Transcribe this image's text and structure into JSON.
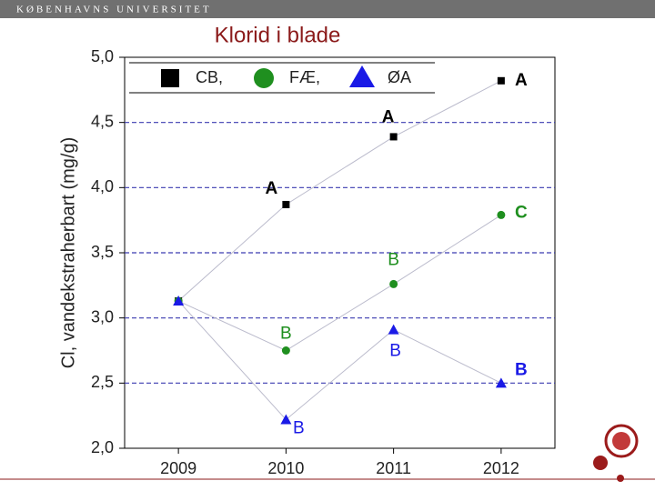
{
  "header": {
    "institution": "KØBENHAVNS UNIVERSITET"
  },
  "chart_data": {
    "type": "line",
    "title": "Klorid i blade",
    "y_label": "Cl, vandekstraherbart (mg/g)",
    "x": [
      2009,
      2010,
      2011,
      2012
    ],
    "xlim": [
      2008.5,
      2012.5
    ],
    "xticks": [
      2009,
      2010,
      2011,
      2012
    ],
    "ylim": [
      2.0,
      5.0
    ],
    "yticks": [
      {
        "value": 2.0,
        "label": "2,0"
      },
      {
        "value": 2.5,
        "label": "2,5"
      },
      {
        "value": 3.0,
        "label": "3,0"
      },
      {
        "value": 3.5,
        "label": "3,5"
      },
      {
        "value": 4.0,
        "label": "4,0"
      },
      {
        "value": 4.5,
        "label": "4,5"
      },
      {
        "value": 5.0,
        "label": "5,0"
      }
    ],
    "grid": true,
    "grid_color": "#3b3bb0",
    "line_color": "#bbbbcc",
    "series": [
      {
        "name": "CB,",
        "color": "#000000",
        "marker": "square",
        "values": [
          3.13,
          3.87,
          4.39,
          4.82
        ],
        "letters": [
          null,
          "A",
          "A",
          "A"
        ]
      },
      {
        "name": "FÆ,",
        "color": "#1f8f1f",
        "marker": "circle",
        "values": [
          3.13,
          2.75,
          3.26,
          3.79
        ],
        "letters": [
          null,
          "B",
          "B",
          "C"
        ]
      },
      {
        "name": "ØA",
        "color": "#1a1ae6",
        "marker": "triangle",
        "values": [
          3.13,
          2.22,
          2.91,
          2.5
        ],
        "letters": [
          null,
          "B",
          "B",
          "B"
        ]
      }
    ]
  }
}
